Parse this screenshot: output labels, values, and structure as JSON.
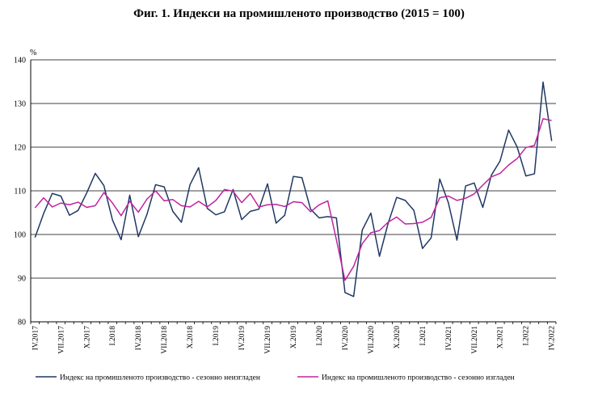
{
  "chart_data": {
    "type": "line",
    "title": "Фиг. 1. Индекси на промишленото производство (2015 = 100)",
    "ylabel": "%",
    "xlabel": "",
    "ylim": [
      80,
      140
    ],
    "yticks": [
      80,
      90,
      100,
      110,
      120,
      130,
      140
    ],
    "grid": true,
    "legend_position": "bottom",
    "x": [
      "IV.2017",
      "V.2017",
      "VI.2017",
      "VII.2017",
      "VIII.2017",
      "IX.2017",
      "X.2017",
      "XI.2017",
      "XII.2017",
      "I.2018",
      "II.2018",
      "III.2018",
      "IV.2018",
      "V.2018",
      "VI.2018",
      "VII.2018",
      "VIII.2018",
      "IX.2018",
      "X.2018",
      "XI.2018",
      "XII.2018",
      "I.2019",
      "II.2019",
      "III.2019",
      "IV.2019",
      "V.2019",
      "VI.2019",
      "VII.2019",
      "VIII.2019",
      "IX.2019",
      "X.2019",
      "XI.2019",
      "XII.2019",
      "I.2020",
      "II.2020",
      "III.2020",
      "IV.2020",
      "V.2020",
      "VI.2020",
      "VII.2020",
      "VIII.2020",
      "IX.2020",
      "X.2020",
      "XI.2020",
      "XII.2020",
      "I.2021",
      "II.2021",
      "III.2021",
      "IV.2021",
      "V.2021",
      "VI.2021",
      "VII.2021",
      "VIII.2021",
      "IX.2021",
      "X.2021",
      "XI.2021",
      "XII.2021",
      "I.2022",
      "II.2022",
      "III.2022",
      "IV.2022"
    ],
    "tick_labels": [
      "IV.2017",
      "VII.2017",
      "X.2017",
      "I.2018",
      "IV.2018",
      "VII.2018",
      "X.2018",
      "I.2019",
      "IV.2019",
      "VII.2019",
      "X.2019",
      "I.2020",
      "IV.2020",
      "VII.2020",
      "X.2020",
      "I.2021",
      "IV.2021",
      "VII.2021",
      "X.2021",
      "I.2022",
      "IV.2022"
    ],
    "series": [
      {
        "name": "Индекс на промишленото производство - сезонно неизгладен",
        "color": "#1f3864",
        "values": [
          99.3,
          104.8,
          109.4,
          108.8,
          104.4,
          105.5,
          109.5,
          114.0,
          111.2,
          103.3,
          98.8,
          109.0,
          99.5,
          104.6,
          111.4,
          110.9,
          105.3,
          102.8,
          111.4,
          115.3,
          106.0,
          104.5,
          105.2,
          110.3,
          103.4,
          105.3,
          105.8,
          111.6,
          102.6,
          104.4,
          113.3,
          113.0,
          105.8,
          103.8,
          104.1,
          103.8,
          86.7,
          85.8,
          101.0,
          104.9,
          95.0,
          102.5,
          108.5,
          107.8,
          105.5,
          96.8,
          99.2,
          112.7,
          107.3,
          98.7,
          111.1,
          111.8,
          106.2,
          113.6,
          116.8,
          123.9,
          120.0,
          113.4,
          113.9,
          134.9,
          121.4
        ]
      },
      {
        "name": "Индекс на промишленото производство - сезонно изгладен",
        "color": "#c0239f",
        "values": [
          106.1,
          108.4,
          106.3,
          107.2,
          106.8,
          107.4,
          106.2,
          106.6,
          109.6,
          107.2,
          104.3,
          107.6,
          105.1,
          108.1,
          110.0,
          107.7,
          108.0,
          106.6,
          106.3,
          107.6,
          106.3,
          107.8,
          110.3,
          109.9,
          107.3,
          109.4,
          106.3,
          106.8,
          106.9,
          106.4,
          107.5,
          107.3,
          105.2,
          106.8,
          107.7,
          98.8,
          89.5,
          92.7,
          97.9,
          100.4,
          100.9,
          102.8,
          104.0,
          102.4,
          102.5,
          102.8,
          103.9,
          108.4,
          108.8,
          107.8,
          108.3,
          109.3,
          111.3,
          113.2,
          114.0,
          115.9,
          117.4,
          119.9,
          120.4,
          126.5,
          126.1
        ]
      }
    ]
  }
}
